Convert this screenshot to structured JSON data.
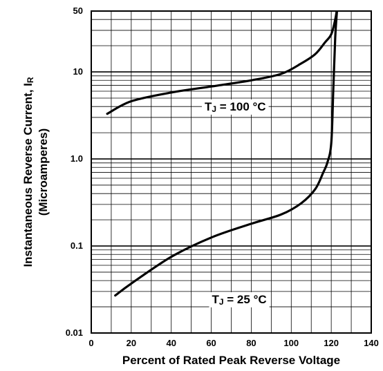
{
  "chart_data": {
    "type": "line",
    "title": "",
    "xlabel": "Percent of Rated Peak Reverse Voltage",
    "ylabel": "Instantaneous Reverse Current, IR",
    "ylabel_sub": "(Microamperes)",
    "xlim": [
      0,
      140
    ],
    "ylim": [
      0.01,
      50
    ],
    "yscale": "log",
    "grid": true,
    "legend": "none",
    "x_ticks": [
      "0",
      "20",
      "40",
      "60",
      "80",
      "100",
      "120",
      "140"
    ],
    "y_ticks": [
      {
        "value": 0.01,
        "label": "0.01"
      },
      {
        "value": 0.1,
        "label": "0.1"
      },
      {
        "value": 1,
        "label": "1.0"
      },
      {
        "value": 10,
        "label": "10"
      },
      {
        "value": 50,
        "label": "50"
      }
    ],
    "series": [
      {
        "x": [
          8,
          20,
          40,
          60,
          80,
          95,
          105,
          112,
          117,
          120,
          122,
          123
        ],
        "y": [
          3.3,
          4.6,
          5.8,
          6.8,
          8.0,
          9.5,
          12.5,
          16,
          22,
          27,
          40,
          55
        ]
      },
      {
        "x": [
          12,
          20,
          40,
          60,
          80,
          95,
          105,
          112,
          116,
          118,
          120,
          121,
          122,
          123
        ],
        "y": [
          0.027,
          0.037,
          0.075,
          0.125,
          0.18,
          0.23,
          0.31,
          0.45,
          0.7,
          0.9,
          1.5,
          6,
          25,
          55
        ]
      }
    ],
    "annotations": [
      {
        "prefix": "T",
        "sub": "J",
        "suffix": " = 100 °C",
        "x": 72,
        "y": 3.6
      },
      {
        "prefix": "T",
        "sub": "J",
        "suffix": " = 25 °C",
        "x": 74,
        "y": 0.022
      }
    ],
    "colors": {
      "line": "#000000",
      "grid": "#000000",
      "background": "#ffffff"
    }
  }
}
